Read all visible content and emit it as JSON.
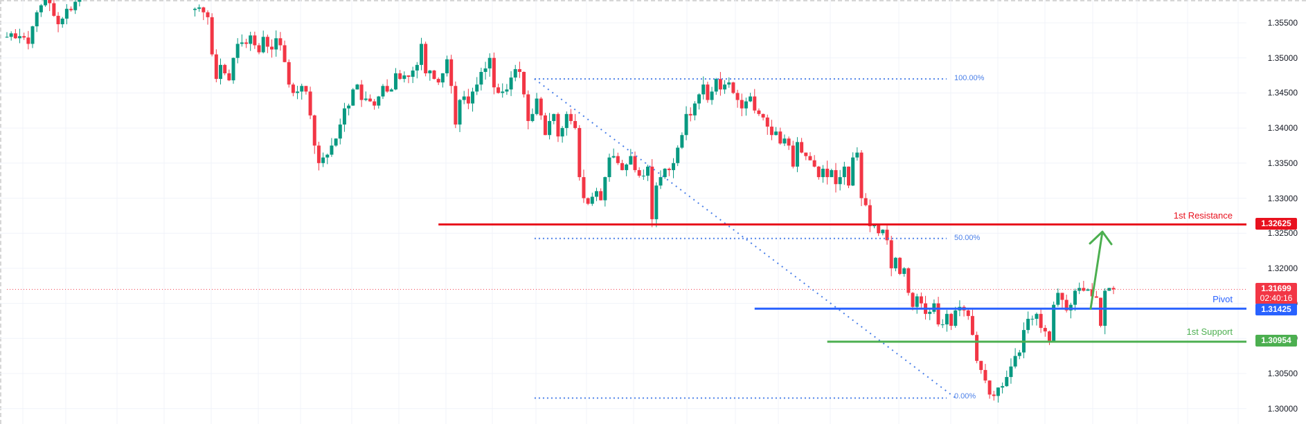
{
  "chart_data": {
    "type": "candlestick",
    "title": "",
    "xlabel": "",
    "ylabel": "",
    "ylim": [
      1.299,
      1.358
    ],
    "grid": true,
    "y_ticks": [
      "1.35500",
      "1.35000",
      "1.34500",
      "1.34000",
      "1.33500",
      "1.33000",
      "1.32500",
      "1.32000",
      "1.31500",
      "1.31000",
      "1.30500",
      "1.30000"
    ],
    "y_tick_values": [
      1.355,
      1.35,
      1.345,
      1.34,
      1.335,
      1.33,
      1.325,
      1.32,
      1.315,
      1.31,
      1.305,
      1.3
    ],
    "colors": {
      "up": "#089981",
      "down": "#f23645",
      "grid": "#f0f3fa",
      "resistance": "#e8111e",
      "pivot": "#2962ff",
      "support": "#4caf50",
      "fib": "#4a7fe8",
      "arrow": "#4caf50",
      "current": "#f23645"
    },
    "close_path": [
      1.353,
      1.3535,
      1.3528,
      1.3531,
      1.3529,
      1.352,
      1.3545,
      1.3565,
      1.3575,
      1.3585,
      1.3578,
      1.356,
      1.3548,
      1.3556,
      1.357,
      1.3568,
      1.358,
      1.359,
      null,
      null,
      null,
      null,
      null,
      null,
      null,
      null,
      null,
      null,
      null,
      null,
      null,
      null,
      null,
      null,
      null,
      null,
      null,
      null,
      null,
      null,
      null,
      null,
      null,
      null,
      1.357,
      1.3572,
      1.3565,
      1.3558,
      1.3505,
      1.347,
      1.349,
      1.3478,
      1.3468,
      1.35,
      1.352,
      1.3522,
      1.352,
      1.3532,
      1.3518,
      1.3508,
      1.353,
      1.3516,
      1.3512,
      1.3528,
      1.3518,
      1.3494,
      1.3462,
      1.345,
      1.3452,
      1.346,
      1.3452,
      1.3418,
      1.3375,
      1.335,
      1.3358,
      1.3362,
      1.3375,
      1.3385,
      1.3405,
      1.3428,
      1.3432,
      1.3455,
      1.3462,
      1.344,
      1.3442,
      1.3438,
      1.3432,
      1.3445,
      1.346,
      1.3452,
      1.3455,
      1.3478,
      1.347,
      1.3475,
      1.3473,
      1.3482,
      1.349,
      1.352,
      1.3478,
      1.3482,
      1.347,
      1.3465,
      1.3478,
      1.3498,
      1.346,
      1.3405,
      1.344,
      1.3445,
      1.3435,
      1.3452,
      1.3462,
      1.348,
      1.3485,
      1.35,
      1.3458,
      1.345,
      1.3452,
      1.3455,
      1.3472,
      1.3484,
      1.348,
      1.3448,
      1.341,
      1.342,
      1.3442,
      1.3418,
      1.339,
      1.341,
      1.342,
      1.3388,
      1.34,
      1.342,
      1.341,
      1.34,
      1.333,
      1.33,
      1.3292,
      1.3302,
      1.331,
      1.3297,
      1.333,
      1.3358,
      1.336,
      1.335,
      1.334,
      1.3348,
      1.336,
      1.334,
      1.3332,
      1.3332,
      1.3345,
      1.327,
      1.3318,
      1.333,
      1.3342,
      1.334,
      1.335,
      1.3372,
      1.339,
      1.342,
      1.3418,
      1.3435,
      1.3448,
      1.3462,
      1.344,
      1.3452,
      1.347,
      1.3455,
      1.3462,
      1.3465,
      1.345,
      1.344,
      1.3428,
      1.3438,
      1.3445,
      1.3425,
      1.342,
      1.3415,
      1.3402,
      1.339,
      1.3395,
      1.3378,
      1.3385,
      1.3375,
      1.3345,
      1.338,
      1.3365,
      1.336,
      1.3354,
      1.3345,
      1.333,
      1.3342,
      1.333,
      1.334,
      1.332,
      1.333,
      1.3345,
      1.3318,
      1.3358,
      1.3365,
      1.33,
      1.329,
      1.326,
      1.3262,
      1.325,
      1.3255,
      1.324,
      1.32,
      1.3215,
      1.3192,
      1.32,
      1.3165,
      1.3145,
      1.316,
      1.315,
      1.3135,
      1.3138,
      1.315,
      1.312,
      1.312,
      1.3135,
      1.3118,
      1.314,
      1.3145,
      1.314,
      1.3132,
      1.3105,
      1.3068,
      1.3055,
      1.304,
      1.302,
      1.3018,
      1.303,
      1.3032,
      1.3045,
      1.306,
      1.3075,
      1.308,
      1.3112,
      1.3128,
      1.3128,
      1.3135,
      1.3115,
      1.311,
      1.3096,
      1.3148,
      1.3165,
      1.3155,
      1.314,
      1.3148,
      1.3168,
      1.3172,
      1.3168,
      1.317,
      1.316,
      1.3158,
      1.3118,
      1.3168,
      1.3172,
      1.317
    ],
    "first_candle_x": 10,
    "candle_spacing": 6.17,
    "levels": [
      {
        "name": "1st Resistance",
        "value": 1.32625,
        "label": "1.32625",
        "color": "#e8111e",
        "start_index": 101
      },
      {
        "name": "Pivot",
        "value": 1.31425,
        "label": "1.31425",
        "color": "#2962ff",
        "start_index": 175
      },
      {
        "name": "1st Support",
        "value": 1.30954,
        "label": "1.30954",
        "color": "#4caf50",
        "start_index": 192
      }
    ],
    "current_price": {
      "value": 1.31699,
      "label": "1.31699",
      "countdown": "02:40:16"
    },
    "fibonacci": {
      "high": 1.347,
      "low": 1.3015,
      "start_index": 123,
      "end_index": 181,
      "levels": [
        {
          "ratio": "100.00%",
          "value": 1.347
        },
        {
          "ratio": "50.00%",
          "value": 1.32425
        },
        {
          "ratio": "0.00%",
          "value": 1.3015
        }
      ]
    },
    "arrow": {
      "from_index": 210,
      "from_value": 1.31425,
      "to_index": 212,
      "to_value": 1.325
    }
  },
  "labels": {
    "resistance": "1st Resistance",
    "pivot": "Pivot",
    "support": "1st Support",
    "fib_100": "100.00%",
    "fib_50": "50.00%",
    "fib_0": "0.00%"
  },
  "price_tags": {
    "resistance": "1.32625",
    "current": "1.31699",
    "countdown": "02:40:16",
    "pivot": "1.31425",
    "support": "1.30954"
  }
}
